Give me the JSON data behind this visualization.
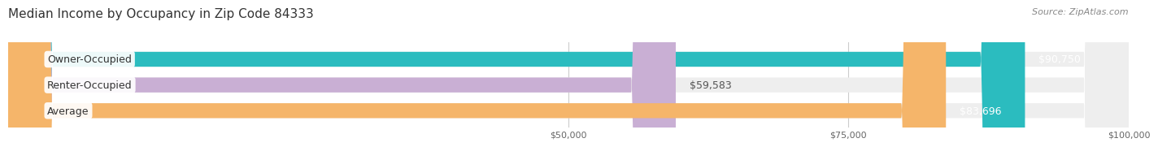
{
  "title": "Median Income by Occupancy in Zip Code 84333",
  "source": "Source: ZipAtlas.com",
  "categories": [
    "Owner-Occupied",
    "Renter-Occupied",
    "Average"
  ],
  "values": [
    90750,
    59583,
    83696
  ],
  "labels": [
    "$90,750",
    "$59,583",
    "$83,696"
  ],
  "bar_colors": [
    "#2bbcbf",
    "#c9afd4",
    "#f5b56a"
  ],
  "bar_bg_color": "#eeeeee",
  "xlim": [
    0,
    100000
  ],
  "xticks": [
    50000,
    75000,
    100000
  ],
  "xtick_labels": [
    "$50,000",
    "$75,000",
    "$100,000"
  ],
  "title_fontsize": 11,
  "source_fontsize": 8,
  "label_fontsize": 9,
  "category_fontsize": 9,
  "bar_height": 0.58,
  "background_color": "#ffffff"
}
